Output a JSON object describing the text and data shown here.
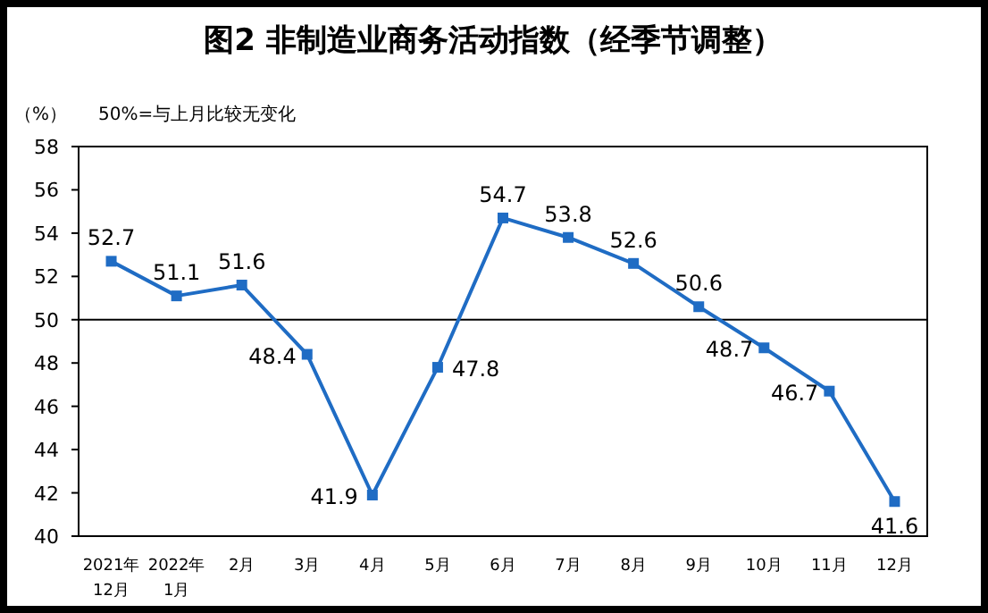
{
  "chart_data": {
    "type": "line",
    "title": "图2 非制造业商务活动指数（经季节调整）",
    "ylabel": "（%）",
    "annotations": [
      "50%=与上月比较无变化"
    ],
    "categories": [
      "2021年\n12月",
      "2022年\n1月",
      "2月",
      "3月",
      "4月",
      "5月",
      "6月",
      "7月",
      "8月",
      "9月",
      "10月",
      "11月",
      "12月"
    ],
    "series": [
      {
        "color": "#1f6cc4",
        "values": [
          52.7,
          51.1,
          51.6,
          48.4,
          41.9,
          47.8,
          54.7,
          53.8,
          52.6,
          50.6,
          48.7,
          46.7,
          41.6
        ]
      }
    ],
    "ylim": [
      40,
      58
    ],
    "yticks": [
      40,
      42,
      44,
      46,
      48,
      50,
      52,
      54,
      56,
      58
    ],
    "ref_lines": [
      {
        "axis": "y",
        "value": 50,
        "color": "#000000"
      }
    ],
    "data_labels": true,
    "marker": "square",
    "line_style": "solid",
    "grid": false
  }
}
